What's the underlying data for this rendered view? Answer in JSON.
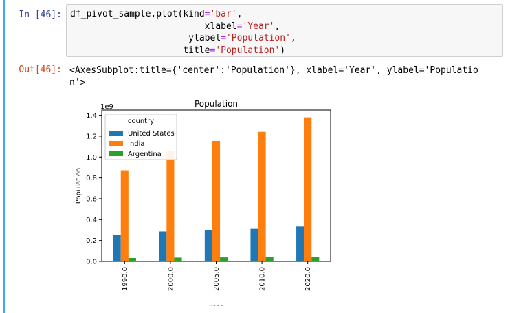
{
  "cell": {
    "in_prompt": "In [46]:",
    "out_prompt": "Out[46]:",
    "code_lines": [
      [
        "df_pivot_sample.plot(kind",
        "=",
        "'bar'",
        ","
      ],
      [
        "                         xlabel",
        "=",
        "'Year'",
        ","
      ],
      [
        "                      ylabel",
        "=",
        "'Population'",
        ","
      ],
      [
        "                     title",
        "=",
        "'Population'",
        ")"
      ]
    ],
    "output_line1": "<AxesSubplot:title={'center':'Population'}, xlabel='Year', ylabel='Populatio",
    "output_line2": "n'>"
  },
  "chart_data": {
    "type": "bar",
    "title": "Population",
    "xlabel": "Year",
    "ylabel": "Population",
    "offset_label": "1e9",
    "categories": [
      "1990.0",
      "2000.0",
      "2005.0",
      "2010.0",
      "2020.0"
    ],
    "ylim": [
      0,
      1.45
    ],
    "yticks": [
      "0.0",
      "0.2",
      "0.4",
      "0.6",
      "0.8",
      "1.0",
      "1.2",
      "1.4"
    ],
    "legend_title": "country",
    "legend_position": "upper-left",
    "series": [
      {
        "name": "United States",
        "color": "#1f77b4",
        "values": [
          0.253,
          0.287,
          0.3,
          0.312,
          0.334
        ]
      },
      {
        "name": "India",
        "color": "#ff7f0e",
        "values": [
          0.873,
          1.057,
          1.154,
          1.241,
          1.38
        ]
      },
      {
        "name": "Argentina",
        "color": "#2ca02c",
        "values": [
          0.033,
          0.037,
          0.039,
          0.041,
          0.045
        ]
      }
    ]
  },
  "colors": {
    "cell_border": "#42a5f5",
    "in_prompt": "#303f9f",
    "out_prompt": "#d84315"
  }
}
